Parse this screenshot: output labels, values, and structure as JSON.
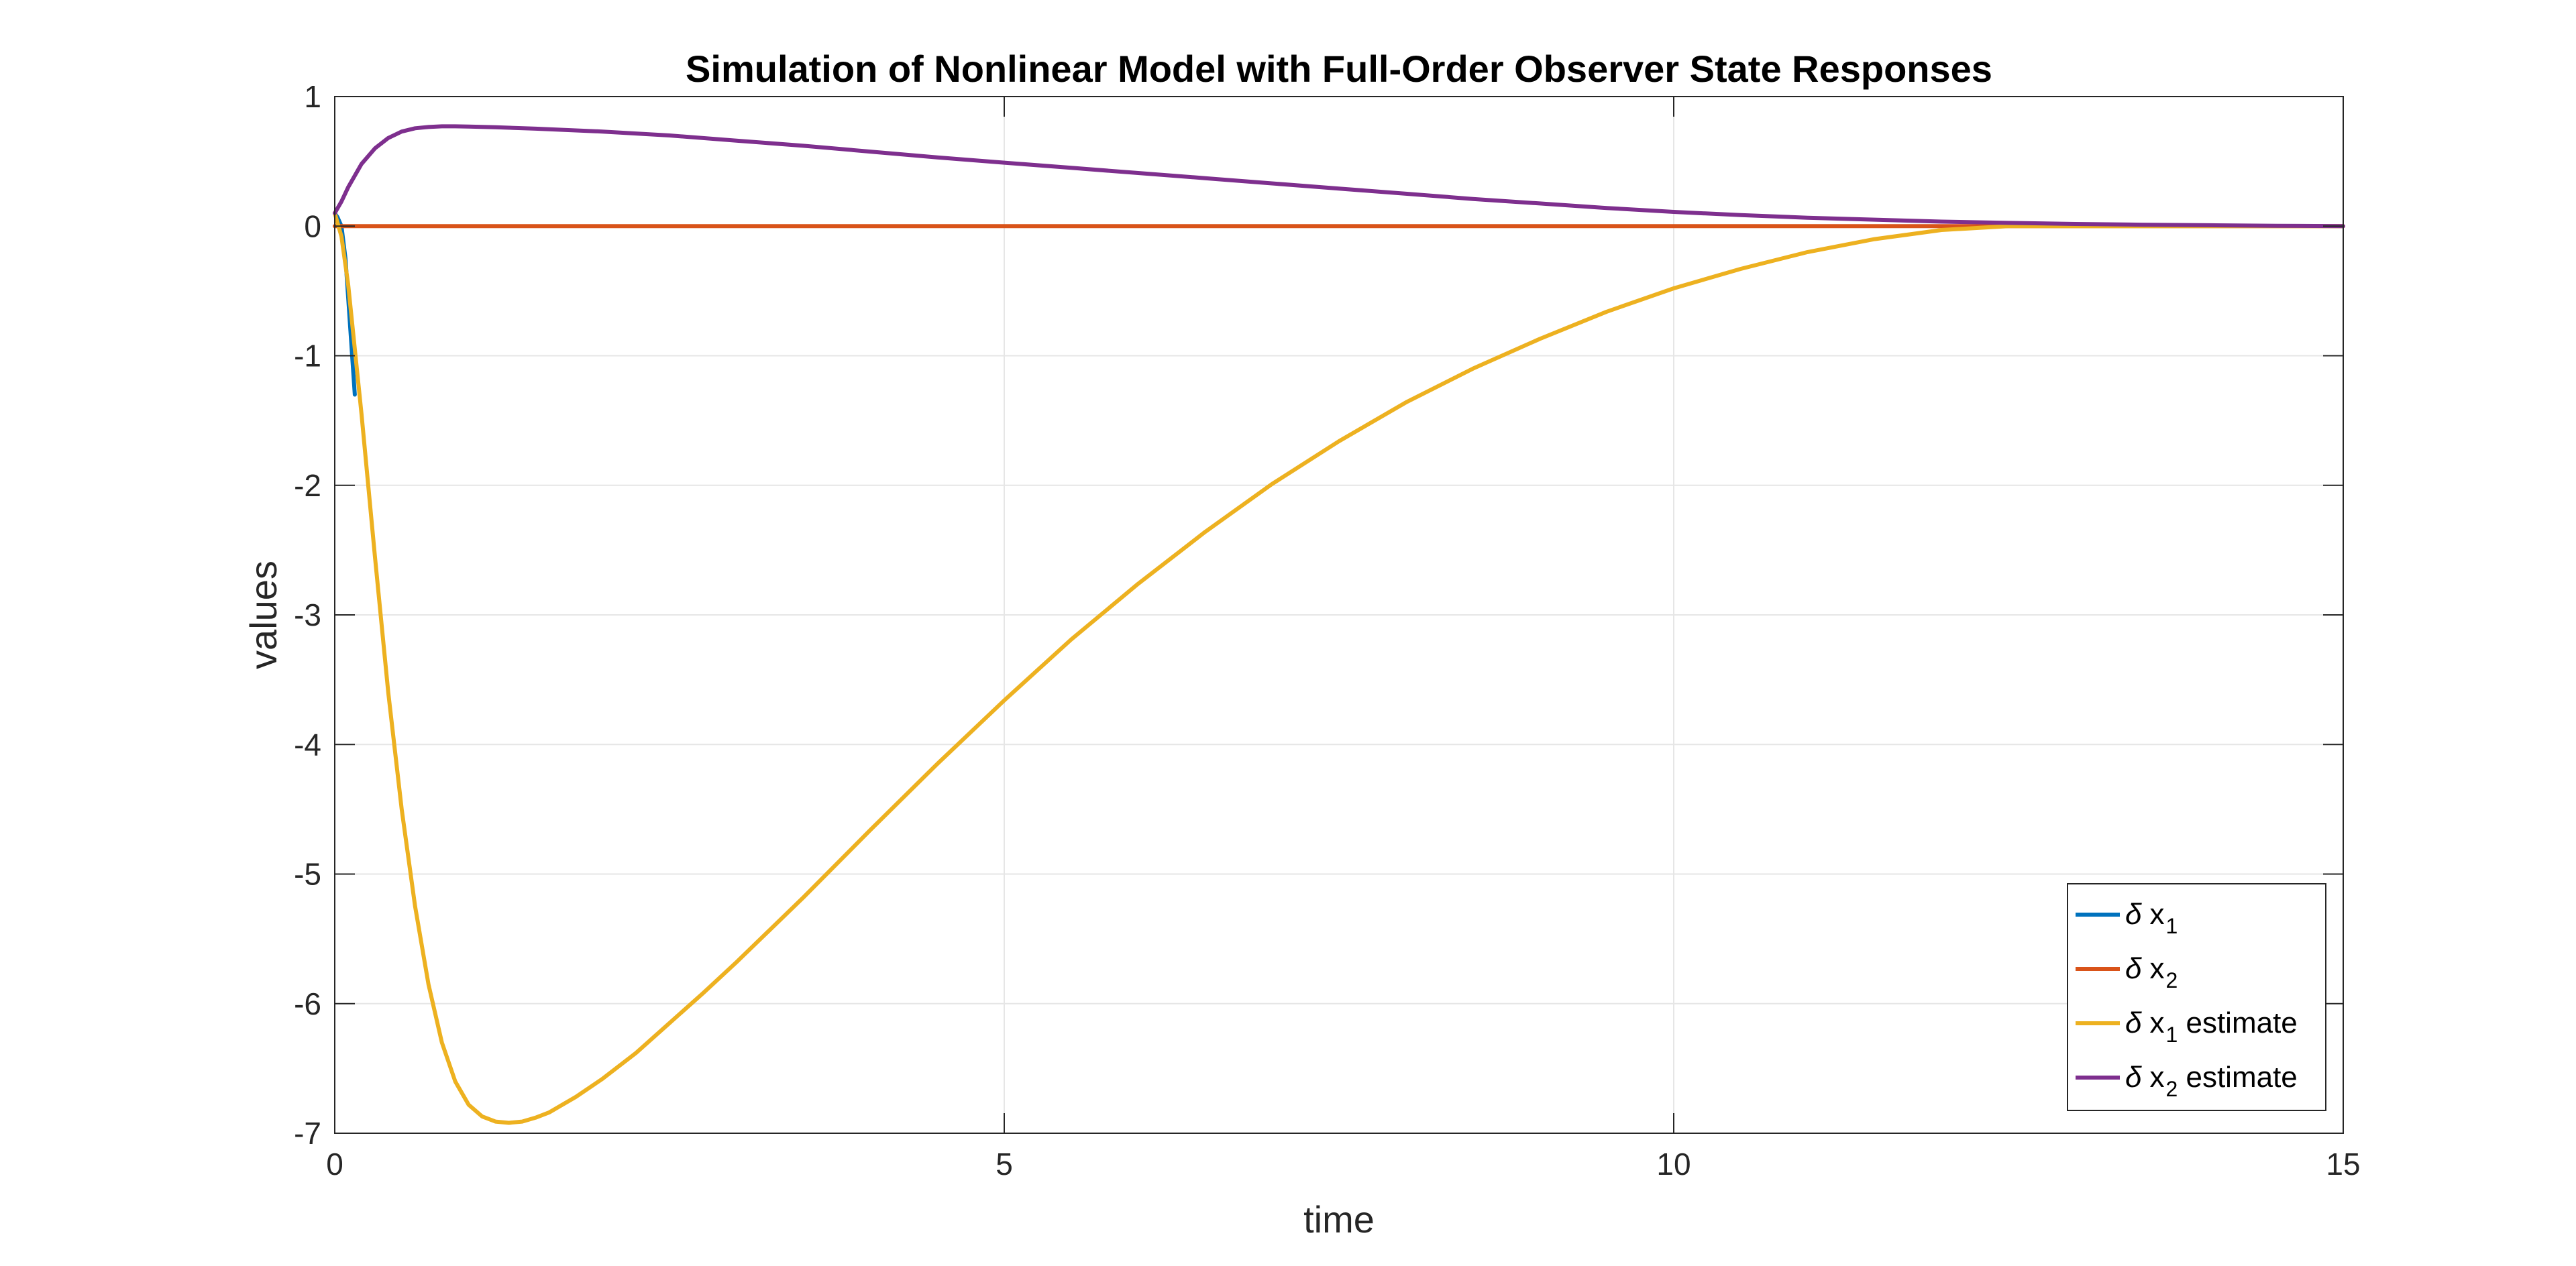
{
  "chart_data": {
    "type": "line",
    "title": "Simulation of Nonlinear Model with Full-Order Observer State Responses",
    "xlabel": "time",
    "ylabel": "values",
    "xlim": [
      0,
      15
    ],
    "ylim": [
      -7,
      1
    ],
    "xticks": [
      0,
      5,
      10,
      15
    ],
    "yticks": [
      1,
      0,
      -1,
      -2,
      -3,
      -4,
      -5,
      -6,
      -7
    ],
    "grid": true,
    "legend_position": "bottom-right",
    "legend": [
      {
        "prefix": "δ",
        "var": "x",
        "sub": "1",
        "suffix": ""
      },
      {
        "prefix": "δ",
        "var": "x",
        "sub": "2",
        "suffix": ""
      },
      {
        "prefix": "δ",
        "var": "x",
        "sub": "1",
        "suffix": " estimate"
      },
      {
        "prefix": "δ",
        "var": "x",
        "sub": "2",
        "suffix": " estimate"
      }
    ],
    "series": [
      {
        "color": "#0072BD",
        "x": [
          0,
          0.02,
          0.05,
          0.08,
          0.1,
          0.15
        ],
        "y": [
          0.1,
          0.07,
          0.0,
          -0.25,
          -0.55,
          -1.3
        ]
      },
      {
        "color": "#D95319",
        "x": [
          0,
          1,
          3,
          5,
          7,
          10,
          12,
          15
        ],
        "y": [
          0.0,
          0.0,
          0.0,
          0.0,
          0.0,
          0.0,
          0.0,
          0.0
        ]
      },
      {
        "color": "#EDB120",
        "x": [
          0,
          0.05,
          0.1,
          0.2,
          0.3,
          0.4,
          0.5,
          0.6,
          0.7,
          0.8,
          0.9,
          1.0,
          1.1,
          1.2,
          1.3,
          1.4,
          1.5,
          1.6,
          1.7,
          1.8,
          2.0,
          2.25,
          2.5,
          2.75,
          3.0,
          3.5,
          4.0,
          4.5,
          5.0,
          5.5,
          6.0,
          6.5,
          7.0,
          7.5,
          8.0,
          8.5,
          9.0,
          9.5,
          10.0,
          10.5,
          11.0,
          11.5,
          12.0,
          12.5,
          13.0,
          13.5,
          14.0,
          14.5,
          15.0
        ],
        "y": [
          0.1,
          -0.08,
          -0.45,
          -1.45,
          -2.55,
          -3.6,
          -4.5,
          -5.25,
          -5.85,
          -6.3,
          -6.6,
          -6.78,
          -6.87,
          -6.91,
          -6.92,
          -6.91,
          -6.88,
          -6.84,
          -6.78,
          -6.72,
          -6.58,
          -6.38,
          -6.15,
          -5.92,
          -5.68,
          -5.18,
          -4.66,
          -4.15,
          -3.66,
          -3.19,
          -2.76,
          -2.36,
          -1.99,
          -1.66,
          -1.36,
          -1.1,
          -0.87,
          -0.66,
          -0.48,
          -0.33,
          -0.2,
          -0.1,
          -0.03,
          0.0,
          0.0,
          0.0,
          0.0,
          0.0,
          0.0
        ]
      },
      {
        "color": "#7E2F8E",
        "x": [
          0,
          0.05,
          0.1,
          0.2,
          0.3,
          0.4,
          0.5,
          0.6,
          0.7,
          0.8,
          0.9,
          1.0,
          1.2,
          1.5,
          2.0,
          2.5,
          3.0,
          3.5,
          4.0,
          4.5,
          5.0,
          5.5,
          6.0,
          6.5,
          7.0,
          7.5,
          8.0,
          8.5,
          9.0,
          9.5,
          10.0,
          10.5,
          11.0,
          11.5,
          12.0,
          12.5,
          13.0,
          13.5,
          14.0,
          14.5,
          15.0
        ],
        "y": [
          0.1,
          0.19,
          0.3,
          0.48,
          0.6,
          0.68,
          0.73,
          0.755,
          0.765,
          0.77,
          0.77,
          0.768,
          0.763,
          0.752,
          0.73,
          0.7,
          0.66,
          0.62,
          0.575,
          0.53,
          0.49,
          0.45,
          0.41,
          0.37,
          0.33,
          0.29,
          0.25,
          0.21,
          0.175,
          0.14,
          0.11,
          0.085,
          0.065,
          0.05,
          0.035,
          0.025,
          0.017,
          0.011,
          0.007,
          0.003,
          0.0
        ]
      }
    ]
  }
}
